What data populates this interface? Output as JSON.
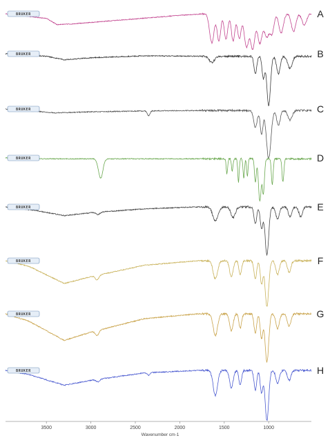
{
  "chart_data": {
    "type": "line",
    "title": "",
    "xlabel": "Wavenumber cm-1",
    "ylabel": "",
    "xlim": [
      3960,
      520
    ],
    "x_reversed": true,
    "x_ticks": [
      3500,
      3000,
      2500,
      2000,
      1500,
      1000
    ],
    "x_tick_labels": [
      "3500",
      "3000",
      "2500",
      "2000",
      "1500",
      "1000"
    ],
    "grid": false,
    "legend": "none",
    "instrument_logo_text": "BRUKER",
    "series": [
      {
        "name": "A",
        "color": "#c2458f",
        "baseline_x": [
          3960,
          3500,
          3380,
          3200,
          2000,
          1720
        ],
        "baseline_y": [
          0.0,
          0.12,
          0.28,
          0.26,
          0.04,
          0.0
        ],
        "peaks": [
          {
            "x": 1640,
            "depth": 0.75,
            "width": 25
          },
          {
            "x": 1560,
            "depth": 0.7,
            "width": 20
          },
          {
            "x": 1480,
            "depth": 0.65,
            "width": 20
          },
          {
            "x": 1400,
            "depth": 0.7,
            "width": 20
          },
          {
            "x": 1330,
            "depth": 0.65,
            "width": 20
          },
          {
            "x": 1250,
            "depth": 0.85,
            "width": 25
          },
          {
            "x": 1180,
            "depth": 0.9,
            "width": 25
          },
          {
            "x": 1100,
            "depth": 0.75,
            "width": 25
          },
          {
            "x": 1020,
            "depth": 0.6,
            "width": 30
          },
          {
            "x": 960,
            "depth": 0.45,
            "width": 20
          },
          {
            "x": 860,
            "depth": 0.5,
            "width": 25
          },
          {
            "x": 720,
            "depth": 0.45,
            "width": 25
          },
          {
            "x": 600,
            "depth": 0.3,
            "width": 25
          }
        ]
      },
      {
        "name": "B",
        "color": "#3a3a3a",
        "baseline_x": [
          3960,
          3500,
          3300,
          3000,
          2400,
          1700
        ],
        "baseline_y": [
          0.0,
          0.05,
          0.12,
          0.08,
          0.04,
          0.05
        ],
        "peaks": [
          {
            "x": 1640,
            "depth": 0.12,
            "width": 30
          },
          {
            "x": 1150,
            "depth": 0.35,
            "width": 15
          },
          {
            "x": 1060,
            "depth": 0.45,
            "width": 15
          },
          {
            "x": 1000,
            "depth": 1.0,
            "width": 20
          },
          {
            "x": 890,
            "depth": 0.35,
            "width": 20
          },
          {
            "x": 760,
            "depth": 0.25,
            "width": 25
          }
        ]
      },
      {
        "name": "C",
        "color": "#555555",
        "baseline_x": [
          3960,
          3600,
          3400,
          3000,
          2400,
          1700
        ],
        "baseline_y": [
          0.0,
          0.05,
          0.08,
          0.06,
          0.04,
          0.03
        ],
        "peaks": [
          {
            "x": 2350,
            "depth": 0.1,
            "width": 15
          },
          {
            "x": 1150,
            "depth": 0.35,
            "width": 20
          },
          {
            "x": 1080,
            "depth": 0.5,
            "width": 15
          },
          {
            "x": 1000,
            "depth": 1.0,
            "width": 25
          },
          {
            "x": 890,
            "depth": 0.3,
            "width": 20
          },
          {
            "x": 760,
            "depth": 0.2,
            "width": 25
          }
        ]
      },
      {
        "name": "D",
        "color": "#6aa84f",
        "baseline_x": [
          3960,
          3600,
          3000,
          1700
        ],
        "baseline_y": [
          0.0,
          0.02,
          0.02,
          0.02
        ],
        "peaks": [
          {
            "x": 2890,
            "depth": 0.45,
            "width": 25
          },
          {
            "x": 1470,
            "depth": 0.35,
            "width": 8
          },
          {
            "x": 1410,
            "depth": 0.3,
            "width": 8
          },
          {
            "x": 1340,
            "depth": 0.55,
            "width": 8
          },
          {
            "x": 1280,
            "depth": 0.45,
            "width": 8
          },
          {
            "x": 1240,
            "depth": 0.4,
            "width": 8
          },
          {
            "x": 1150,
            "depth": 0.55,
            "width": 10
          },
          {
            "x": 1100,
            "depth": 1.0,
            "width": 15
          },
          {
            "x": 1060,
            "depth": 0.8,
            "width": 12
          },
          {
            "x": 960,
            "depth": 0.6,
            "width": 10
          },
          {
            "x": 840,
            "depth": 0.55,
            "width": 10
          }
        ]
      },
      {
        "name": "E",
        "color": "#444444",
        "baseline_x": [
          3960,
          3600,
          3300,
          3000,
          2400,
          1800,
          1700
        ],
        "baseline_y": [
          0.0,
          0.08,
          0.18,
          0.12,
          0.04,
          0.0,
          0.0
        ],
        "peaks": [
          {
            "x": 2920,
            "depth": 0.05,
            "width": 20
          },
          {
            "x": 1600,
            "depth": 0.28,
            "width": 30
          },
          {
            "x": 1400,
            "depth": 0.22,
            "width": 25
          },
          {
            "x": 1150,
            "depth": 0.35,
            "width": 15
          },
          {
            "x": 1080,
            "depth": 0.45,
            "width": 15
          },
          {
            "x": 1020,
            "depth": 1.0,
            "width": 20
          },
          {
            "x": 900,
            "depth": 0.25,
            "width": 20
          },
          {
            "x": 760,
            "depth": 0.2,
            "width": 20
          },
          {
            "x": 640,
            "depth": 0.2,
            "width": 20
          }
        ]
      },
      {
        "name": "F",
        "color": "#c9b25a",
        "baseline_x": [
          3960,
          3700,
          3300,
          3000,
          2400,
          1800,
          1700
        ],
        "baseline_y": [
          0.0,
          0.12,
          0.5,
          0.35,
          0.1,
          0.0,
          0.0
        ],
        "peaks": [
          {
            "x": 2930,
            "depth": 0.1,
            "width": 20
          },
          {
            "x": 1600,
            "depth": 0.4,
            "width": 25
          },
          {
            "x": 1420,
            "depth": 0.35,
            "width": 20
          },
          {
            "x": 1320,
            "depth": 0.3,
            "width": 15
          },
          {
            "x": 1150,
            "depth": 0.4,
            "width": 15
          },
          {
            "x": 1080,
            "depth": 0.5,
            "width": 15
          },
          {
            "x": 1020,
            "depth": 1.0,
            "width": 20
          },
          {
            "x": 900,
            "depth": 0.3,
            "width": 20
          },
          {
            "x": 770,
            "depth": 0.25,
            "width": 20
          }
        ]
      },
      {
        "name": "G",
        "color": "#c9a34a",
        "baseline_x": [
          3960,
          3700,
          3300,
          3000,
          2400,
          1800,
          1700
        ],
        "baseline_y": [
          0.0,
          0.15,
          0.55,
          0.38,
          0.1,
          0.0,
          0.0
        ],
        "peaks": [
          {
            "x": 2930,
            "depth": 0.1,
            "width": 20
          },
          {
            "x": 1600,
            "depth": 0.45,
            "width": 25
          },
          {
            "x": 1420,
            "depth": 0.35,
            "width": 20
          },
          {
            "x": 1320,
            "depth": 0.3,
            "width": 15
          },
          {
            "x": 1150,
            "depth": 0.4,
            "width": 15
          },
          {
            "x": 1080,
            "depth": 0.5,
            "width": 15
          },
          {
            "x": 1020,
            "depth": 1.0,
            "width": 20
          },
          {
            "x": 900,
            "depth": 0.3,
            "width": 20
          },
          {
            "x": 770,
            "depth": 0.25,
            "width": 20
          }
        ]
      },
      {
        "name": "H",
        "color": "#4a5ad0",
        "baseline_x": [
          3960,
          3700,
          3300,
          3000,
          2400,
          1800,
          1700
        ],
        "baseline_y": [
          0.0,
          0.08,
          0.3,
          0.2,
          0.05,
          0.0,
          0.0
        ],
        "peaks": [
          {
            "x": 2920,
            "depth": 0.05,
            "width": 20
          },
          {
            "x": 2350,
            "depth": 0.05,
            "width": 15
          },
          {
            "x": 1600,
            "depth": 0.5,
            "width": 25
          },
          {
            "x": 1420,
            "depth": 0.35,
            "width": 20
          },
          {
            "x": 1320,
            "depth": 0.3,
            "width": 15
          },
          {
            "x": 1150,
            "depth": 0.4,
            "width": 15
          },
          {
            "x": 1080,
            "depth": 0.45,
            "width": 15
          },
          {
            "x": 1020,
            "depth": 1.0,
            "width": 20
          },
          {
            "x": 900,
            "depth": 0.25,
            "width": 20
          },
          {
            "x": 770,
            "depth": 0.2,
            "width": 20
          }
        ]
      }
    ]
  }
}
